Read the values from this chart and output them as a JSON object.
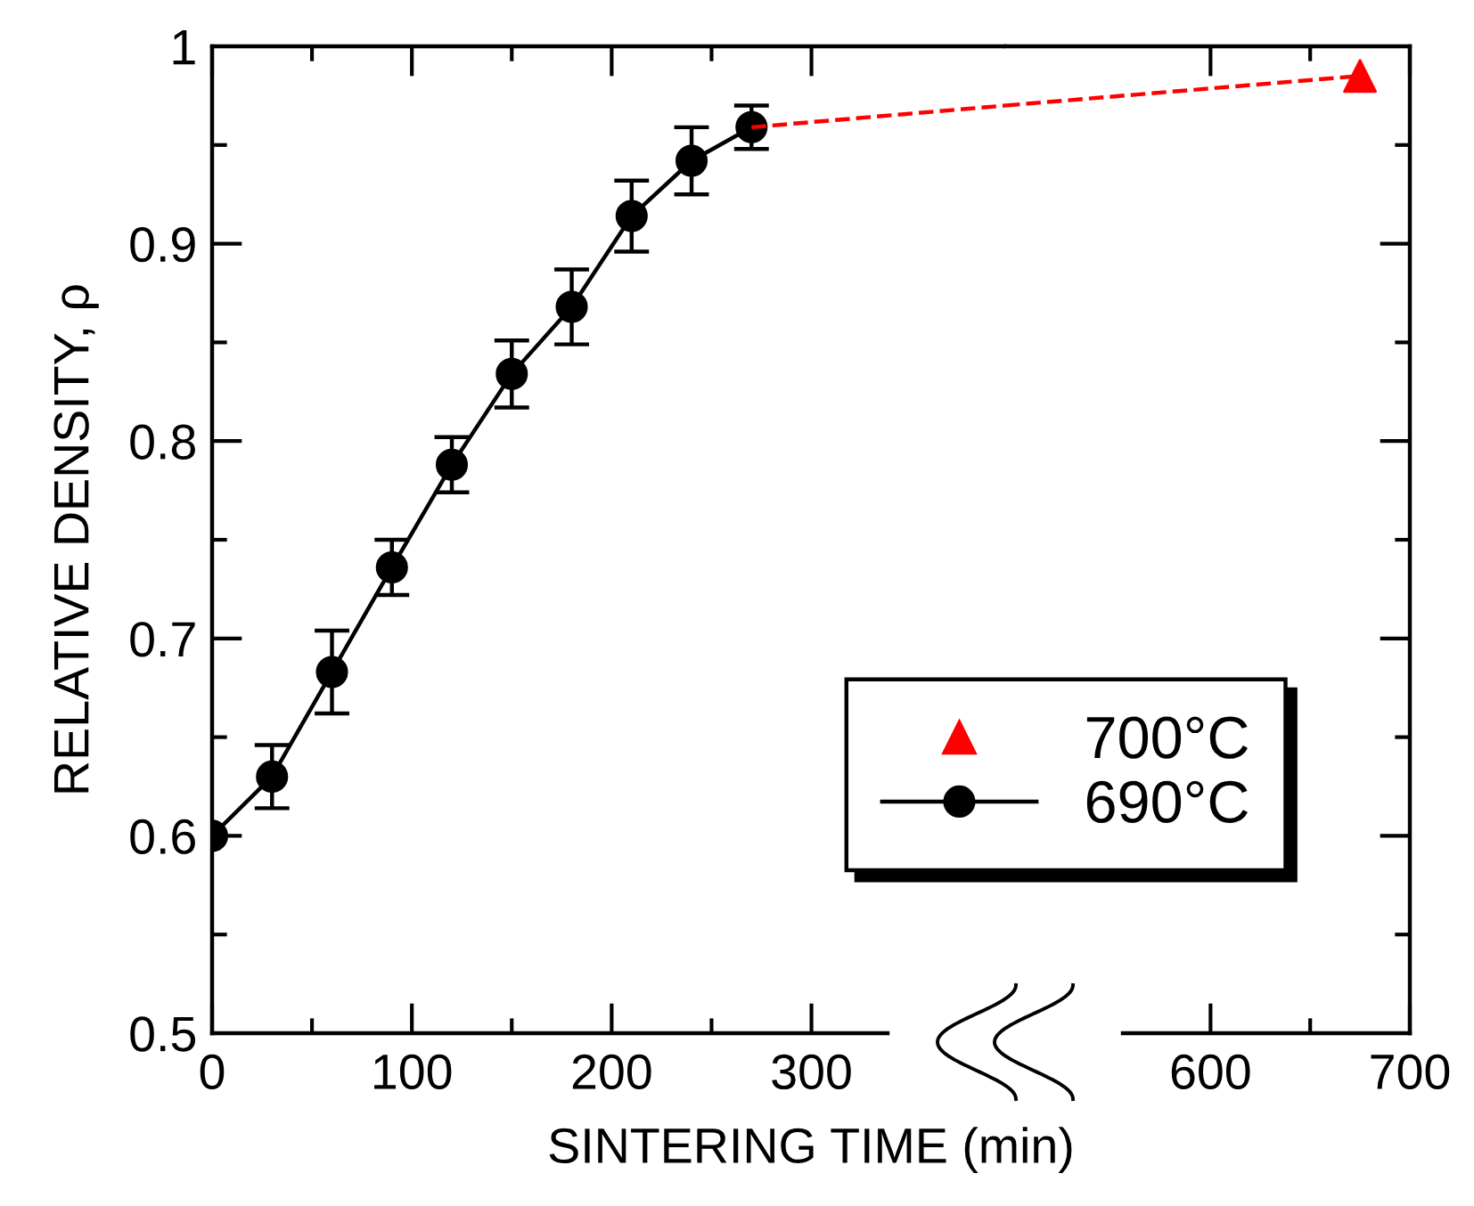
{
  "chart_data": [
    {
      "type": "line",
      "xlabel": "SINTERING TIME (min)",
      "ylabel": "RELATIVE DENSITY, ρ",
      "x": [
        0,
        30,
        60,
        90,
        120,
        150,
        180,
        210,
        240,
        270
      ],
      "series": [
        {
          "name": "690°C",
          "color": "#000000",
          "marker": "circle",
          "line_style": "solid",
          "values": [
            0.6,
            0.63,
            0.683,
            0.736,
            0.788,
            0.834,
            0.868,
            0.914,
            0.942,
            0.959
          ],
          "errors": [
            null,
            0.016,
            0.021,
            0.014,
            0.014,
            0.017,
            0.019,
            0.018,
            0.017,
            0.011
          ]
        },
        {
          "type": "line",
          "color": "#ff0000",
          "line_style": "dashed",
          "marker": "none",
          "x": [
            270,
            397
          ],
          "values": [
            0.959,
            0.97
          ]
        }
      ],
      "xlim": [
        0,
        397
      ],
      "xticks": [
        0,
        {
          "value": 50,
          "label": null
        },
        100,
        {
          "value": 150,
          "label": null
        },
        200,
        {
          "value": 250,
          "label": null
        },
        300
      ],
      "ylim": [
        0.5,
        1
      ],
      "yticks": [
        0.5,
        {
          "value": 0.55,
          "label": null
        },
        0.6,
        {
          "value": 0.65,
          "label": null
        },
        0.7,
        {
          "value": 0.75,
          "label": null
        },
        0.8,
        {
          "value": 0.85,
          "label": null
        },
        0.9,
        {
          "value": 0.95,
          "label": null
        },
        1
      ],
      "legend": "bottom right",
      "grid": false
    },
    {
      "type": "line",
      "series": [
        {
          "type": "line",
          "color": "#ff0000",
          "line_style": "dashed",
          "marker": "none",
          "x": [
            497,
            675
          ],
          "values": [
            0.97,
            0.985
          ]
        },
        {
          "name": "700°C",
          "type": "scatter",
          "color": "#ff0000",
          "marker": "triangle",
          "x": [
            675
          ],
          "values": [
            0.985
          ]
        }
      ],
      "xlim": [
        497,
        700
      ],
      "xticks": [
        600,
        {
          "value": 650,
          "label": null
        },
        700
      ],
      "ylim": [
        0.5,
        1
      ],
      "yticks": [
        0.5,
        {
          "value": 0.55,
          "label": null
        },
        0.6,
        {
          "value": 0.65,
          "label": null
        },
        0.7,
        {
          "value": 0.75,
          "label": null
        },
        0.8,
        {
          "value": 0.85,
          "label": null
        },
        0.9,
        {
          "value": 0.95,
          "label": null
        },
        1
      ],
      "tick_labels": "x",
      "grid": false
    }
  ]
}
